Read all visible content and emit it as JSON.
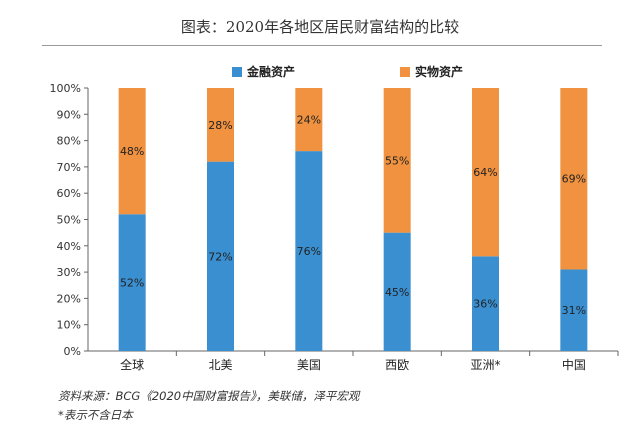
{
  "title": "图表：2020年各地区居民财富结构的比较",
  "colors": {
    "financial": "#3a8fd0",
    "physical": "#f0923f",
    "axis": "#666666"
  },
  "chart_data": {
    "type": "bar",
    "stacked": true,
    "categories": [
      "全球",
      "北美",
      "美国",
      "西欧",
      "亚洲*",
      "中国"
    ],
    "series": [
      {
        "name": "金融资产",
        "values": [
          52,
          72,
          76,
          45,
          36,
          31
        ],
        "labels": [
          "52%",
          "72%",
          "76%",
          "45%",
          "36%",
          "31%"
        ]
      },
      {
        "name": "实物资产",
        "values": [
          48,
          28,
          24,
          55,
          64,
          69
        ],
        "labels": [
          "48%",
          "28%",
          "24%",
          "55%",
          "64%",
          "69%"
        ]
      }
    ],
    "ylim": [
      0,
      100
    ],
    "yticks": [
      "0%",
      "10%",
      "20%",
      "30%",
      "40%",
      "50%",
      "60%",
      "70%",
      "80%",
      "90%",
      "100%"
    ],
    "legend_position": "top"
  },
  "footnotes": {
    "source": "资料来源：BCG《2020中国财富报告》，美联储，泽平宏观",
    "note": "*表示不含日本"
  }
}
